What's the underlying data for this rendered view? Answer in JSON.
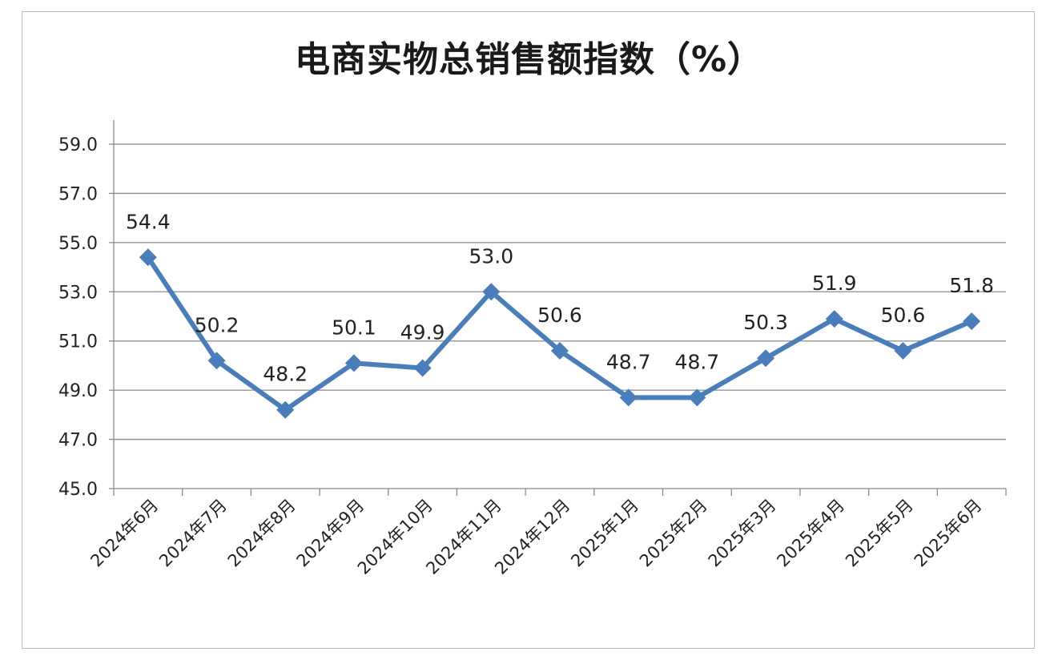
{
  "chart_data": {
    "type": "line",
    "title": "电商实物总销售额指数（%）",
    "categories": [
      "2024年6月",
      "2024年7月",
      "2024年8月",
      "2024年9月",
      "2024年10月",
      "2024年11月",
      "2024年12月",
      "2025年1月",
      "2025年2月",
      "2025年3月",
      "2025年4月",
      "2025年5月",
      "2025年6月"
    ],
    "values": [
      54.4,
      50.2,
      48.2,
      50.1,
      49.9,
      53.0,
      50.6,
      48.7,
      48.7,
      50.3,
      51.9,
      50.6,
      51.8
    ],
    "data_labels": [
      "54.4",
      "50.2",
      "48.2",
      "50.1",
      "49.9",
      "53.0",
      "50.6",
      "48.7",
      "48.7",
      "50.3",
      "51.9",
      "50.6",
      "51.8"
    ],
    "yticks": [
      "45.0",
      "47.0",
      "49.0",
      "51.0",
      "53.0",
      "55.0",
      "57.0",
      "59.0"
    ],
    "ylim": [
      45.0,
      59.0
    ],
    "grid": true,
    "legend": "none",
    "line_color": "#4a7ebb",
    "marker": "diamond",
    "xlabel": "",
    "ylabel": ""
  }
}
